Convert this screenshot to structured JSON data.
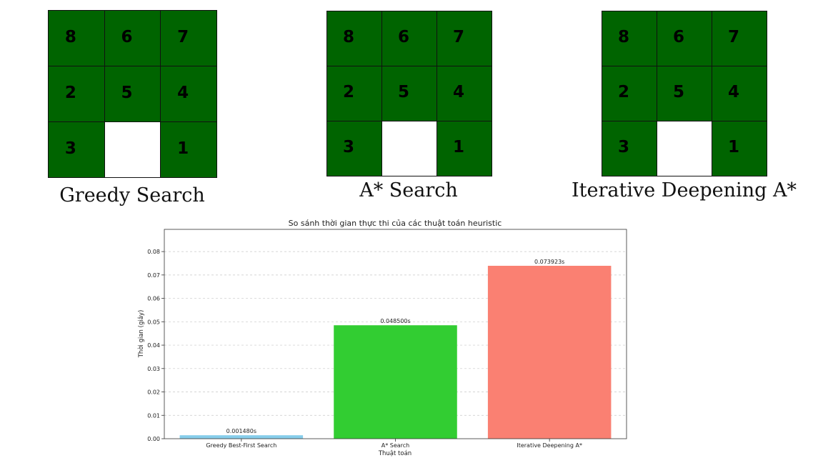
{
  "puzzles": [
    {
      "caption": "Greedy Search",
      "tiles": [
        "8",
        "6",
        "7",
        "2",
        "5",
        "4",
        "3",
        "",
        "1"
      ]
    },
    {
      "caption": "A* Search",
      "tiles": [
        "8",
        "6",
        "7",
        "2",
        "5",
        "4",
        "3",
        "",
        "1"
      ]
    },
    {
      "caption": "Iterative Deepening A*",
      "tiles": [
        "8",
        "6",
        "7",
        "2",
        "5",
        "4",
        "3",
        "",
        "1"
      ]
    }
  ],
  "colors": {
    "tile": "#006400",
    "empty_tile": "#ffffff"
  },
  "chart_data": {
    "type": "bar",
    "title": "So sánh thời gian thực thi của các thuật toán heuristic",
    "xlabel": "Thuật toán",
    "ylabel": "Thời gian (giây)",
    "categories": [
      "Greedy Best-First Search",
      "A* Search",
      "Iterative Deepening A*"
    ],
    "values": [
      0.00148,
      0.0485,
      0.073923
    ],
    "value_labels": [
      "0.001480s",
      "0.048500s",
      "0.073923s"
    ],
    "colors": [
      "#87ceeb",
      "#32cd32",
      "#fa8072"
    ],
    "yticks": [
      "0.00",
      "0.01",
      "0.02",
      "0.03",
      "0.04",
      "0.05",
      "0.06",
      "0.07",
      "0.08"
    ],
    "ylim": [
      0,
      0.0895
    ],
    "grid": "y-dashed"
  }
}
